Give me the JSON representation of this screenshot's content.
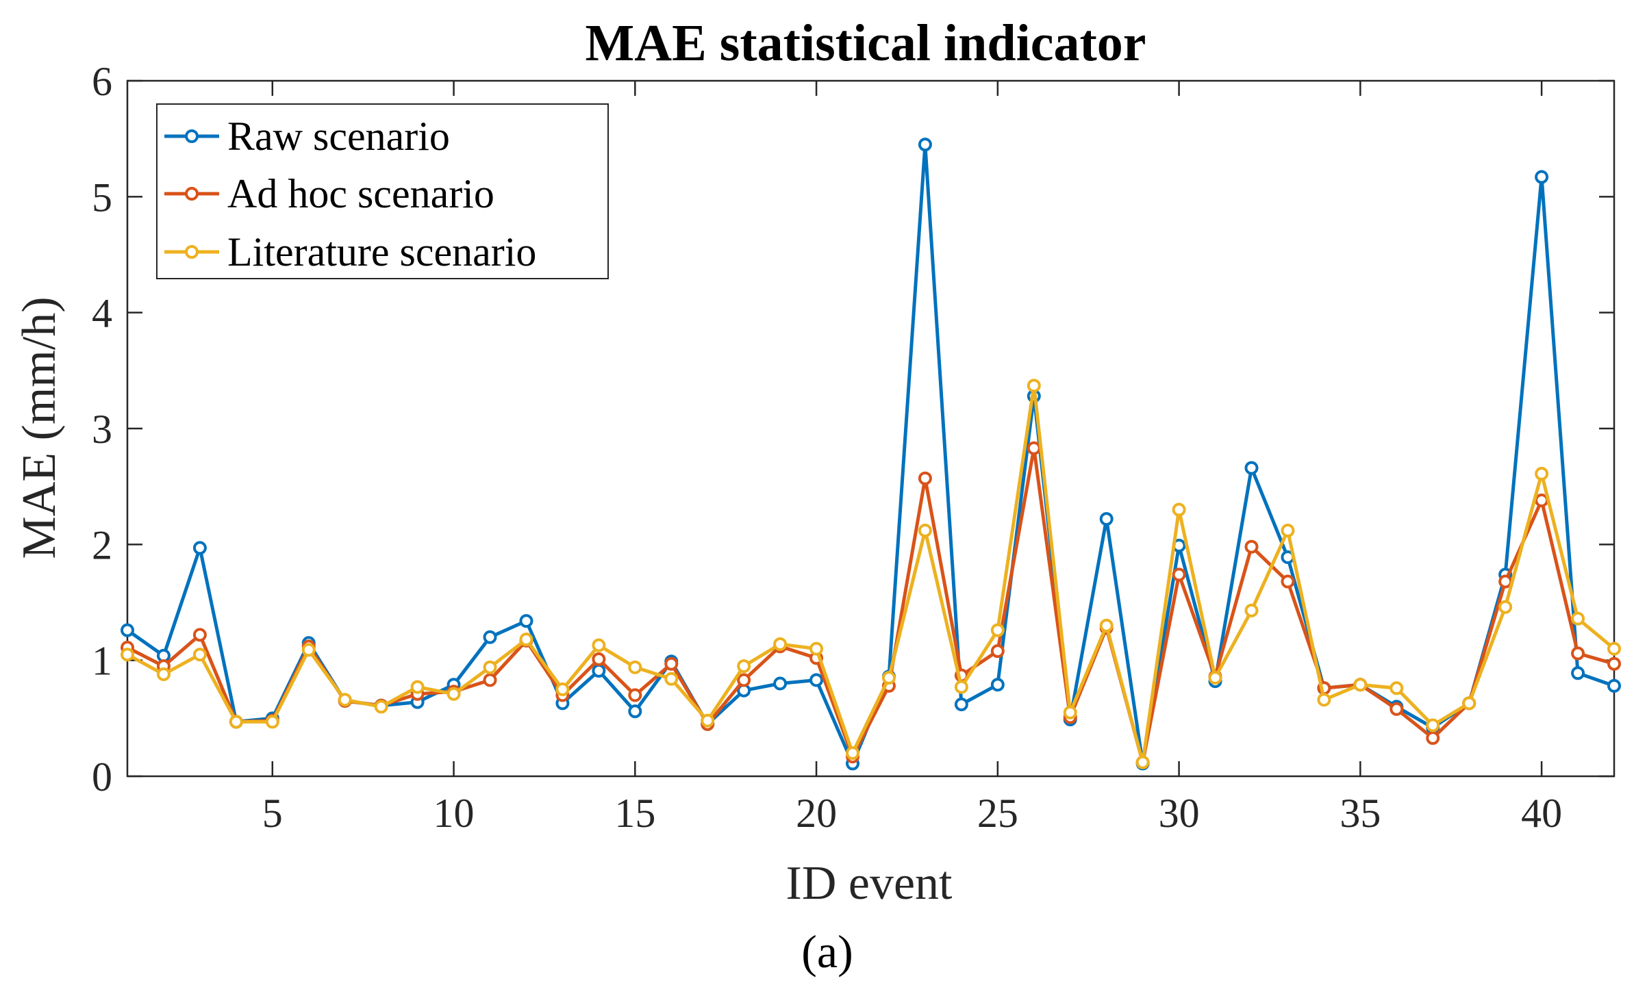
{
  "chart_data": {
    "type": "line",
    "title": "MAE statistical indicator",
    "xlabel": "ID event",
    "ylabel": "MAE (mm/h)",
    "panel_label": "(a)",
    "xlim": [
      1,
      42
    ],
    "ylim": [
      0,
      6
    ],
    "xticks": [
      5,
      10,
      15,
      20,
      25,
      30,
      35,
      40
    ],
    "yticks": [
      0,
      1,
      2,
      3,
      4,
      5,
      6
    ],
    "legend_position": "top-left",
    "x": [
      1,
      2,
      3,
      4,
      5,
      6,
      7,
      8,
      9,
      10,
      11,
      12,
      13,
      14,
      15,
      16,
      17,
      18,
      19,
      20,
      21,
      22,
      23,
      24,
      25,
      26,
      27,
      28,
      29,
      30,
      31,
      32,
      33,
      34,
      35,
      36,
      37,
      38,
      39,
      40,
      41,
      42
    ],
    "series": [
      {
        "name": "Raw scenario",
        "color": "#0072BD",
        "values": [
          1.26,
          1.04,
          1.97,
          0.47,
          0.5,
          1.15,
          0.65,
          0.61,
          0.64,
          0.79,
          1.2,
          1.34,
          0.63,
          0.91,
          0.56,
          0.99,
          0.45,
          0.74,
          0.8,
          0.83,
          0.11,
          0.86,
          5.45,
          0.62,
          0.79,
          3.28,
          0.49,
          2.22,
          0.11,
          1.99,
          0.82,
          2.66,
          1.89,
          0.76,
          0.79,
          0.6,
          0.42,
          0.63,
          1.74,
          5.17,
          0.89,
          0.78
        ]
      },
      {
        "name": "Ad hoc scenario",
        "color": "#D95319",
        "values": [
          1.11,
          0.95,
          1.22,
          0.47,
          0.48,
          1.12,
          0.65,
          0.61,
          0.71,
          0.73,
          0.83,
          1.17,
          0.7,
          1.01,
          0.7,
          0.97,
          0.45,
          0.83,
          1.12,
          1.02,
          0.17,
          0.78,
          2.57,
          0.87,
          1.08,
          2.83,
          0.51,
          1.28,
          0.12,
          1.74,
          0.86,
          1.98,
          1.68,
          0.76,
          0.79,
          0.58,
          0.33,
          0.63,
          1.68,
          2.38,
          1.06,
          0.97
        ]
      },
      {
        "name": "Literature scenario",
        "color": "#EDB120",
        "values": [
          1.05,
          0.88,
          1.05,
          0.47,
          0.47,
          1.09,
          0.66,
          0.6,
          0.77,
          0.71,
          0.94,
          1.18,
          0.75,
          1.13,
          0.94,
          0.84,
          0.48,
          0.95,
          1.14,
          1.1,
          0.2,
          0.85,
          2.12,
          0.77,
          1.26,
          3.37,
          0.55,
          1.3,
          0.12,
          2.3,
          0.85,
          1.43,
          2.12,
          0.66,
          0.79,
          0.76,
          0.44,
          0.63,
          1.46,
          2.61,
          1.36,
          1.1
        ]
      }
    ]
  }
}
